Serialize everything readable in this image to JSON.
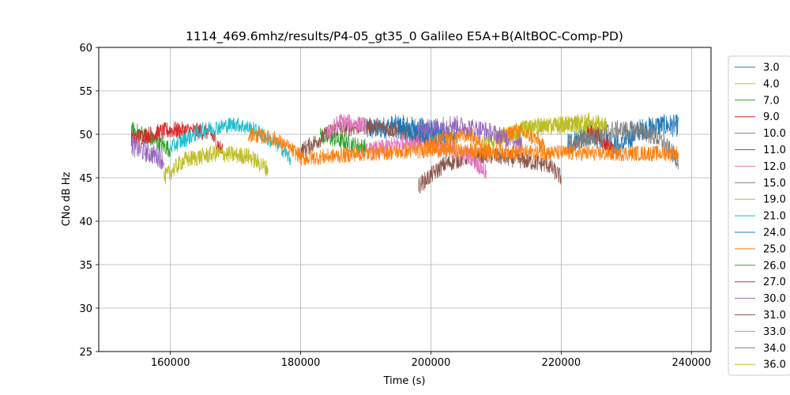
{
  "chart_data": {
    "type": "line",
    "title": "1114_469.6mhz/results/P4-05_gt35_0 Galileo E5A+B(AltBOC-Comp-PD)",
    "xlabel": "Time (s)",
    "ylabel": "CNo dB Hz",
    "xlim": [
      149000,
      243000
    ],
    "ylim": [
      25,
      60
    ],
    "xticks": [
      160000,
      180000,
      200000,
      220000,
      240000
    ],
    "xtick_labels": [
      "160000",
      "180000",
      "200000",
      "220000",
      "240000"
    ],
    "yticks": [
      25,
      30,
      35,
      40,
      45,
      50,
      55,
      60
    ],
    "ytick_labels": [
      "25",
      "30",
      "35",
      "40",
      "45",
      "50",
      "55",
      "60"
    ],
    "grid": true,
    "legend_position": "right",
    "series": [
      {
        "name": "3.0",
        "color": "#1f77b4",
        "noise": 1.3,
        "segments": [
          [
            [
              190000,
              50.5
            ],
            [
              195000,
              51
            ],
            [
              200000,
              50.5
            ],
            [
              202000,
              50
            ]
          ],
          [
            [
              221000,
              49
            ],
            [
              224000,
              50
            ],
            [
              227000,
              49.5
            ],
            [
              229000,
              48.5
            ]
          ],
          [
            [
              229000,
              48.5
            ],
            [
              232000,
              50.5
            ],
            [
              235000,
              51
            ],
            [
              238000,
              51
            ]
          ]
        ]
      },
      {
        "name": "4.0",
        "color": "#bcbd22",
        "noise": 0.9,
        "segments": [
          [
            [
              210000,
              49.5
            ],
            [
              215000,
              51
            ],
            [
              220000,
              51.3
            ],
            [
              226000,
              50.5
            ]
          ]
        ]
      },
      {
        "name": "7.0",
        "color": "#2ca02c",
        "noise": 1.0,
        "segments": [
          [
            [
              154000,
              50.5
            ],
            [
              156000,
              50
            ],
            [
              158000,
              49
            ],
            [
              160000,
              48.3
            ]
          ],
          [
            [
              183000,
              49.8
            ],
            [
              185000,
              49.5
            ],
            [
              188000,
              48.8
            ],
            [
              190000,
              48.5
            ]
          ]
        ]
      },
      {
        "name": "9.0",
        "color": "#d62728",
        "noise": 1.0,
        "segments": [
          [
            [
              154000,
              49.5
            ],
            [
              160000,
              50.5
            ],
            [
              166000,
              50.3
            ],
            [
              168000,
              48
            ]
          ],
          [
            [
              224000,
              50.5
            ],
            [
              226000,
              49.5
            ],
            [
              228000,
              48
            ]
          ]
        ]
      },
      {
        "name": "10.0",
        "color": "#9467bd",
        "noise": 1.2,
        "segments": [
          [
            [
              154000,
              48.7
            ],
            [
              156000,
              48
            ],
            [
              158000,
              47.5
            ],
            [
              159000,
              47
            ]
          ],
          [
            [
              212000,
              49.5
            ],
            [
              214000,
              49
            ]
          ]
        ]
      },
      {
        "name": "11.0",
        "color": "#8c564b",
        "noise": 1.0,
        "segments": [
          [
            [
              180000,
              48
            ],
            [
              185000,
              50.5
            ],
            [
              190000,
              51
            ],
            [
              195000,
              50.5
            ],
            [
              200000,
              49
            ]
          ],
          [
            [
              198000,
              44
            ],
            [
              202000,
              46.5
            ],
            [
              206000,
              47.5
            ],
            [
              210000,
              47.5
            ],
            [
              214000,
              47
            ],
            [
              218000,
              46.5
            ],
            [
              220000,
              45
            ]
          ]
        ]
      },
      {
        "name": "12.0",
        "color": "#e377c2",
        "noise": 1.0,
        "segments": [
          [
            [
              184000,
              50
            ],
            [
              186000,
              51.5
            ],
            [
              190000,
              51
            ]
          ],
          [
            [
              190000,
              48
            ],
            [
              193000,
              48.5
            ],
            [
              196000,
              49.2
            ],
            [
              199000,
              49
            ]
          ],
          [
            [
              199000,
              49
            ],
            [
              202000,
              48.5
            ],
            [
              206000,
              47.5
            ],
            [
              208500,
              45.5
            ]
          ]
        ]
      },
      {
        "name": "15.0",
        "color": "#7f7f7f",
        "noise": 1.1,
        "segments": [
          [
            [
              221000,
              48.5
            ],
            [
              224000,
              49.5
            ],
            [
              228000,
              50.5
            ],
            [
              232000,
              50.5
            ],
            [
              235000,
              49.5
            ],
            [
              238000,
              47
            ]
          ]
        ]
      },
      {
        "name": "19.0",
        "color": "#bcbd22",
        "noise": 1.0,
        "segments": [
          [
            [
              159000,
              45
            ],
            [
              162000,
              47
            ],
            [
              167000,
              47.8
            ],
            [
              172000,
              47.5
            ],
            [
              175000,
              46
            ]
          ],
          [
            [
              208000,
              49
            ],
            [
              212000,
              50
            ],
            [
              216000,
              50.8
            ],
            [
              220000,
              51
            ],
            [
              224000,
              51.5
            ],
            [
              227000,
              51
            ]
          ]
        ]
      },
      {
        "name": "21.0",
        "color": "#17becf",
        "noise": 0.9,
        "segments": [
          [
            [
              160000,
              48.5
            ],
            [
              165000,
              50.5
            ],
            [
              170000,
              51.2
            ],
            [
              173000,
              50.5
            ],
            [
              175000,
              49.5
            ],
            [
              177000,
              48.5
            ],
            [
              178500,
              47
            ]
          ]
        ]
      },
      {
        "name": "24.0",
        "color": "#1f77b4",
        "noise": 1.1,
        "segments": [
          [
            [
              195000,
              50.5
            ],
            [
              200000,
              50
            ],
            [
              204000,
              49.5
            ]
          ]
        ]
      },
      {
        "name": "25.0",
        "color": "#ff7f0e",
        "noise": 0.9,
        "segments": [
          [
            [
              172000,
              50
            ],
            [
              176000,
              49.5
            ],
            [
              180000,
              47.5
            ]
          ],
          [
            [
              180000,
              47.2
            ],
            [
              190000,
              47.8
            ],
            [
              200000,
              48.2
            ],
            [
              210000,
              48
            ]
          ],
          [
            [
              210000,
              48
            ],
            [
              225000,
              47.8
            ],
            [
              238000,
              47.8
            ]
          ],
          [
            [
              199000,
              48.5
            ],
            [
              202000,
              49.5
            ],
            [
              206000,
              50
            ],
            [
              209000,
              48
            ]
          ],
          [
            [
              210000,
              49
            ],
            [
              213000,
              50.5
            ],
            [
              216000,
              49.5
            ],
            [
              218000,
              48
            ]
          ]
        ]
      },
      {
        "name": "26.0",
        "color": "#2ca02c",
        "noise": 0.8,
        "segments": []
      },
      {
        "name": "27.0",
        "color": "#d62728",
        "noise": 0.8,
        "segments": []
      },
      {
        "name": "30.0",
        "color": "#9467bd",
        "noise": 1.1,
        "segments": [
          [
            [
              198000,
              50.5
            ],
            [
              203000,
              51.2
            ],
            [
              208000,
              50.5
            ],
            [
              212000,
              49.5
            ]
          ]
        ]
      },
      {
        "name": "31.0",
        "color": "#8c564b",
        "noise": 0.8,
        "segments": []
      },
      {
        "name": "33.0",
        "color": "#e377c2",
        "noise": 0.8,
        "segments": []
      },
      {
        "name": "34.0",
        "color": "#7f7f7f",
        "noise": 0.8,
        "segments": []
      },
      {
        "name": "36.0",
        "color": "#bcbd22",
        "noise": 0.8,
        "segments": []
      }
    ]
  }
}
